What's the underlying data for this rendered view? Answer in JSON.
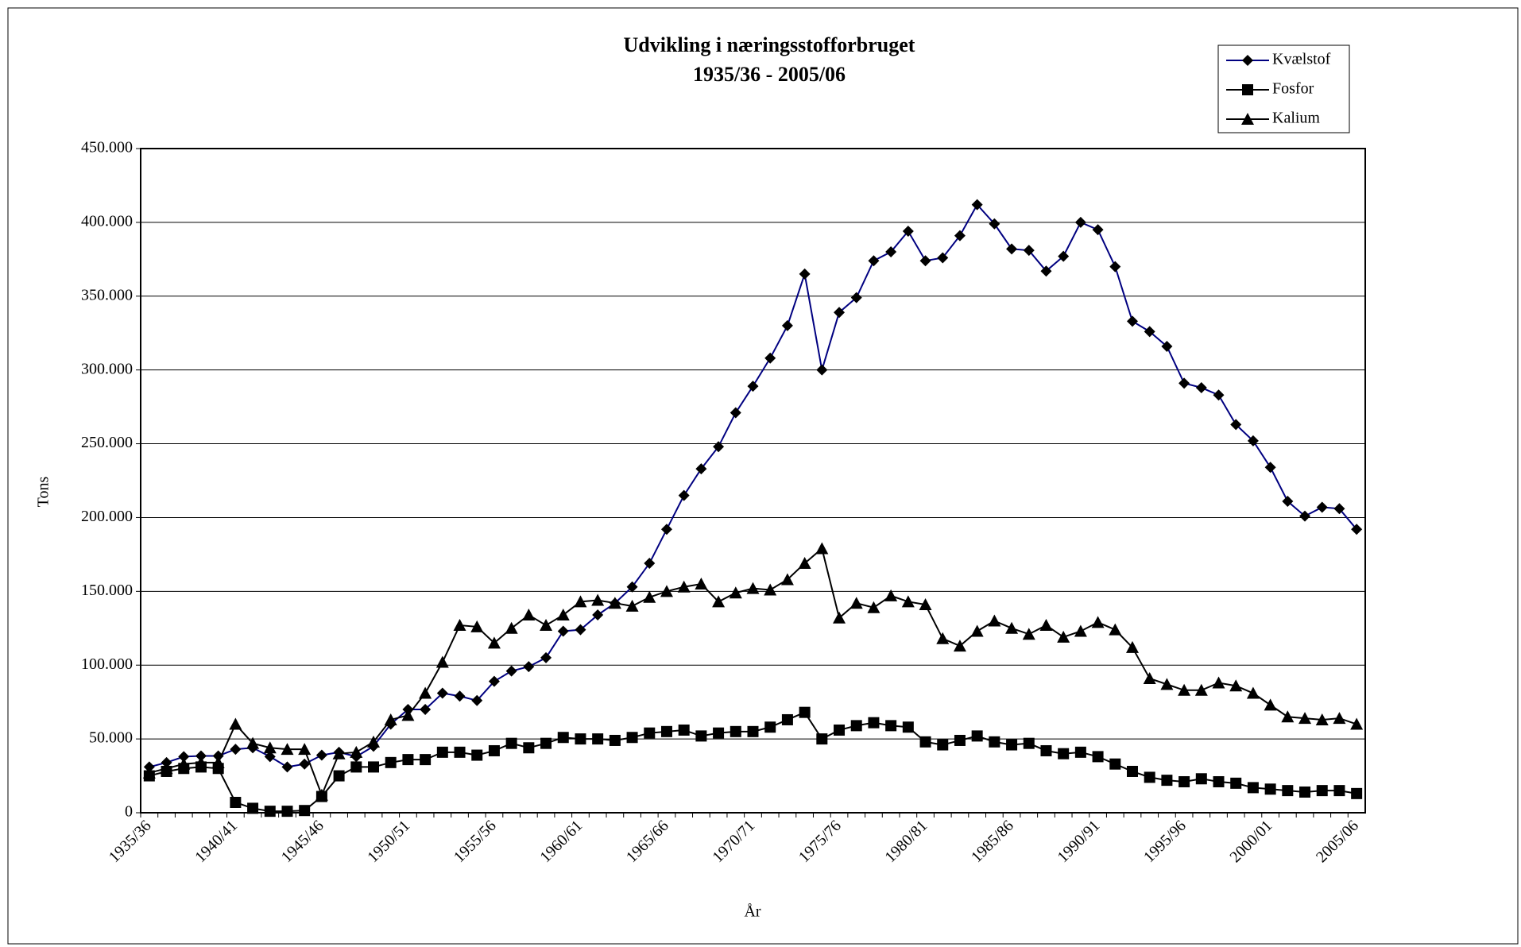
{
  "chart_data": {
    "type": "line",
    "title": "Udvikling i næringsstofforbruget",
    "subtitle": "1935/36 - 2005/06",
    "x_label": "År",
    "y_label": "Tons",
    "categories": [
      "1935/36",
      null,
      null,
      null,
      null,
      "1940/41",
      null,
      null,
      null,
      null,
      "1945/46",
      null,
      null,
      null,
      null,
      "1950/51",
      null,
      null,
      null,
      null,
      "1955/56",
      null,
      null,
      null,
      null,
      "1960/61",
      null,
      null,
      null,
      null,
      "1965/66",
      null,
      null,
      null,
      null,
      "1970/71",
      null,
      null,
      null,
      null,
      "1975/76",
      null,
      null,
      null,
      null,
      "1980/81",
      null,
      null,
      null,
      null,
      "1985/86",
      null,
      null,
      null,
      null,
      "1990/91",
      null,
      null,
      null,
      null,
      "1995/96",
      null,
      null,
      null,
      null,
      "2000/01",
      null,
      null,
      null,
      null,
      "2005/06"
    ],
    "series": [
      {
        "name": "Kvælstof",
        "color": "#000080",
        "marker": "diamond",
        "values": [
          31000,
          34000,
          38000,
          38500,
          38500,
          43000,
          44000,
          38000,
          31000,
          33000,
          39000,
          41000,
          38000,
          45000,
          60000,
          70000,
          70000,
          81000,
          79000,
          76000,
          89000,
          96000,
          99000,
          105000,
          123000,
          124000,
          134000,
          142000,
          153000,
          169000,
          192000,
          215000,
          233000,
          248000,
          271000,
          289000,
          308000,
          330000,
          365000,
          300000,
          339000,
          349000,
          374000,
          380000,
          394000,
          374000,
          376000,
          391000,
          412000,
          399000,
          382000,
          381000,
          367000,
          377000,
          400000,
          395000,
          370000,
          333000,
          326000,
          316000,
          291000,
          288000,
          283000,
          263000,
          252000,
          234000,
          211000,
          201000,
          207000,
          206000,
          192000
        ]
      },
      {
        "name": "Fosfor",
        "color": "#000000",
        "marker": "square",
        "values": [
          25000,
          28000,
          30000,
          31000,
          30000,
          7000,
          3000,
          1000,
          1000,
          1500,
          11000,
          25000,
          31000,
          31000,
          34000,
          36000,
          36000,
          41000,
          41000,
          39000,
          42000,
          47000,
          44000,
          47000,
          51000,
          50000,
          50000,
          49000,
          51000,
          54000,
          55000,
          56000,
          52000,
          54000,
          55000,
          55000,
          58000,
          63000,
          68000,
          50000,
          56000,
          59000,
          61000,
          59000,
          58000,
          48000,
          46000,
          49000,
          52000,
          48000,
          46000,
          47000,
          42000,
          40000,
          41000,
          38000,
          33000,
          28000,
          24000,
          22000,
          21000,
          23000,
          21000,
          20000,
          17000,
          16000,
          15000,
          14000,
          15000,
          15000,
          13000
        ]
      },
      {
        "name": "Kalium",
        "color": "#000000",
        "marker": "triangle",
        "values": [
          27000,
          30000,
          33000,
          34000,
          34000,
          60000,
          47000,
          44000,
          43000,
          43000,
          12000,
          40000,
          41000,
          48000,
          63000,
          66000,
          81000,
          102000,
          127000,
          126000,
          115000,
          125000,
          134000,
          127000,
          134000,
          143000,
          144000,
          142000,
          140000,
          146000,
          150000,
          153000,
          155000,
          143000,
          149000,
          152000,
          151000,
          158000,
          169000,
          179000,
          132000,
          142000,
          139000,
          147000,
          143000,
          141000,
          118000,
          113000,
          123000,
          130000,
          125000,
          121000,
          127000,
          119000,
          123000,
          129000,
          124000,
          112000,
          91000,
          87000,
          83000,
          83000,
          88000,
          86000,
          81000,
          73000,
          65000,
          64000,
          63000,
          64000,
          60000
        ]
      }
    ],
    "ylim": [
      0,
      450000
    ],
    "yticks": [
      0,
      {
        "value": 50000,
        "label": "50.000"
      },
      {
        "value": 100000,
        "label": "100.000"
      },
      {
        "value": 150000,
        "label": "150.000"
      },
      {
        "value": 200000,
        "label": "200.000"
      },
      {
        "value": 250000,
        "label": "250.000"
      },
      {
        "value": 300000,
        "label": "300.000"
      },
      {
        "value": 350000,
        "label": "350.000"
      },
      {
        "value": 400000,
        "label": "400.000"
      },
      {
        "value": 450000,
        "label": "450.000"
      }
    ],
    "grid": true,
    "legend": "top-right"
  }
}
